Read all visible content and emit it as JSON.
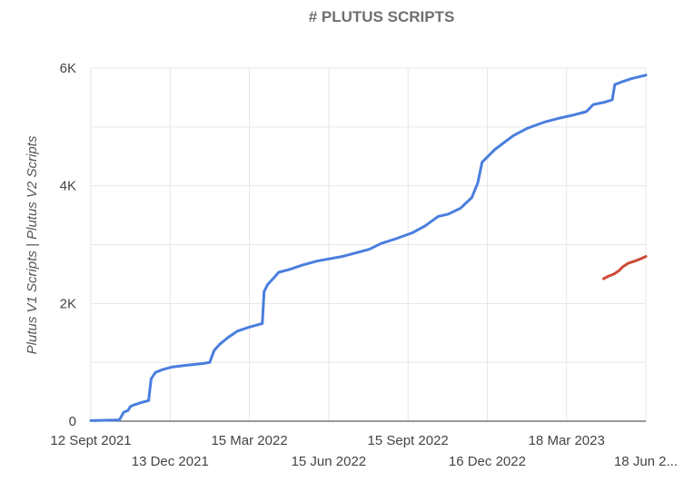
{
  "chart_data": {
    "type": "line",
    "title": "# PLUTUS SCRIPTS",
    "xlabel": "",
    "ylabel": "Plutus V1 Scripts | Plutus V2 Scripts",
    "xlim": [
      "2021-09-12",
      "2023-06-18"
    ],
    "ylim": [
      0,
      6000
    ],
    "grid": true,
    "legend": "none",
    "y_ticks": [
      {
        "value": 0,
        "label": "0"
      },
      {
        "value": 2000,
        "label": "2K"
      },
      {
        "value": 4000,
        "label": "4K"
      },
      {
        "value": 6000,
        "label": "6K"
      }
    ],
    "x_ticks": [
      {
        "date": "2021-09-12",
        "label": "12 Sept 2021",
        "row": 1
      },
      {
        "date": "2021-12-13",
        "label": "13 Dec 2021",
        "row": 2
      },
      {
        "date": "2022-03-15",
        "label": "15 Mar 2022",
        "row": 1
      },
      {
        "date": "2022-06-15",
        "label": "15 Jun 2022",
        "row": 2
      },
      {
        "date": "2022-09-15",
        "label": "15 Sept 2022",
        "row": 1
      },
      {
        "date": "2022-12-16",
        "label": "16 Dec 2022",
        "row": 2
      },
      {
        "date": "2023-03-18",
        "label": "18 Mar 2023",
        "row": 1
      },
      {
        "date": "2023-06-18",
        "label": "18 Jun 2...",
        "row": 2
      }
    ],
    "series": [
      {
        "color": "#4a7ede",
        "points": [
          [
            "2021-09-12",
            10
          ],
          [
            "2021-10-15",
            20
          ],
          [
            "2021-10-20",
            150
          ],
          [
            "2021-10-25",
            180
          ],
          [
            "2021-10-28",
            250
          ],
          [
            "2021-11-02",
            280
          ],
          [
            "2021-11-10",
            320
          ],
          [
            "2021-11-18",
            350
          ],
          [
            "2021-11-21",
            720
          ],
          [
            "2021-11-26",
            830
          ],
          [
            "2021-12-05",
            880
          ],
          [
            "2021-12-15",
            920
          ],
          [
            "2022-01-01",
            950
          ],
          [
            "2022-01-20",
            980
          ],
          [
            "2022-01-28",
            1000
          ],
          [
            "2022-02-02",
            1200
          ],
          [
            "2022-02-08",
            1300
          ],
          [
            "2022-02-18",
            1420
          ],
          [
            "2022-03-01",
            1530
          ],
          [
            "2022-03-15",
            1600
          ],
          [
            "2022-03-30",
            1660
          ],
          [
            "2022-04-01",
            2200
          ],
          [
            "2022-04-05",
            2320
          ],
          [
            "2022-04-12",
            2430
          ],
          [
            "2022-04-18",
            2530
          ],
          [
            "2022-05-01",
            2580
          ],
          [
            "2022-05-15",
            2650
          ],
          [
            "2022-06-01",
            2720
          ],
          [
            "2022-07-01",
            2800
          ],
          [
            "2022-08-01",
            2920
          ],
          [
            "2022-08-15",
            3020
          ],
          [
            "2022-09-01",
            3100
          ],
          [
            "2022-09-20",
            3200
          ],
          [
            "2022-10-05",
            3320
          ],
          [
            "2022-10-20",
            3480
          ],
          [
            "2022-11-01",
            3520
          ],
          [
            "2022-11-15",
            3620
          ],
          [
            "2022-11-28",
            3800
          ],
          [
            "2022-12-05",
            4050
          ],
          [
            "2022-12-10",
            4400
          ],
          [
            "2022-12-25",
            4620
          ],
          [
            "2023-01-15",
            4850
          ],
          [
            "2023-02-01",
            4980
          ],
          [
            "2023-02-20",
            5080
          ],
          [
            "2023-03-10",
            5150
          ],
          [
            "2023-03-25",
            5200
          ],
          [
            "2023-04-10",
            5260
          ],
          [
            "2023-04-18",
            5380
          ],
          [
            "2023-05-01",
            5420
          ],
          [
            "2023-05-10",
            5460
          ],
          [
            "2023-05-13",
            5720
          ],
          [
            "2023-05-20",
            5760
          ],
          [
            "2023-06-01",
            5820
          ],
          [
            "2023-06-18",
            5880
          ]
        ]
      },
      {
        "color": "#cc4b37",
        "points": [
          [
            "2023-04-30",
            2420
          ],
          [
            "2023-05-05",
            2460
          ],
          [
            "2023-05-12",
            2500
          ],
          [
            "2023-05-18",
            2560
          ],
          [
            "2023-05-22",
            2620
          ],
          [
            "2023-05-28",
            2680
          ],
          [
            "2023-06-05",
            2720
          ],
          [
            "2023-06-12",
            2760
          ],
          [
            "2023-06-18",
            2800
          ]
        ]
      }
    ]
  }
}
